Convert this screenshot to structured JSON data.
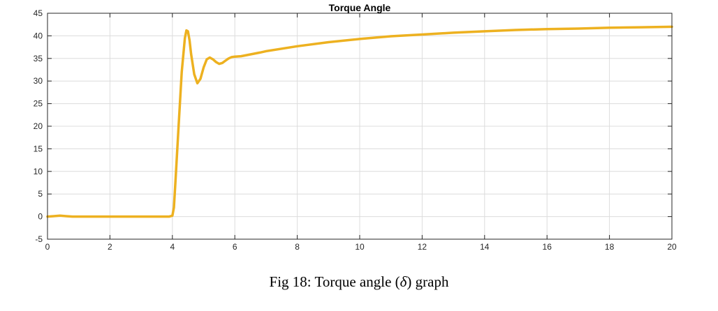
{
  "chart_data": {
    "type": "line",
    "title": "Torque Angle",
    "xlabel": "",
    "ylabel": "",
    "xlim": [
      0,
      20
    ],
    "ylim": [
      -5,
      45
    ],
    "xticks": [
      0,
      2,
      4,
      6,
      8,
      10,
      12,
      14,
      16,
      18,
      20
    ],
    "yticks": [
      -5,
      0,
      5,
      10,
      15,
      20,
      25,
      30,
      35,
      40,
      45
    ],
    "grid": true,
    "line_color": "#EDB120",
    "series": [
      {
        "x": [
          0,
          0.2,
          0.4,
          0.6,
          0.8,
          1.0,
          2.0,
          3.0,
          3.9,
          4.0,
          4.05,
          4.1,
          4.2,
          4.3,
          4.4,
          4.45,
          4.5,
          4.55,
          4.6,
          4.7,
          4.8,
          4.9,
          5.0,
          5.1,
          5.2,
          5.3,
          5.4,
          5.5,
          5.6,
          5.7,
          5.8,
          5.9,
          6.0,
          6.2,
          6.5,
          6.8,
          7.0,
          8.0,
          9.0,
          10.0,
          11.0,
          12.0,
          13.0,
          14.0,
          15.0,
          16.0,
          17.0,
          18.0,
          19.0,
          20.0
        ],
        "y": [
          0,
          0.1,
          0.2,
          0.1,
          0,
          0,
          0,
          0,
          0,
          0.2,
          2.0,
          8.0,
          20.0,
          32.0,
          39.5,
          41.2,
          41.0,
          39.0,
          36.0,
          31.5,
          29.5,
          30.5,
          33.0,
          34.8,
          35.2,
          34.8,
          34.2,
          33.8,
          34.0,
          34.5,
          35.0,
          35.3,
          35.4,
          35.5,
          35.9,
          36.3,
          36.6,
          37.7,
          38.6,
          39.3,
          39.9,
          40.3,
          40.7,
          41.0,
          41.3,
          41.5,
          41.6,
          41.8,
          41.9,
          42.0
        ]
      }
    ]
  },
  "caption": {
    "prefix": "Fig 18: Torque angle (",
    "symbol": "δ",
    "suffix": ") graph"
  }
}
